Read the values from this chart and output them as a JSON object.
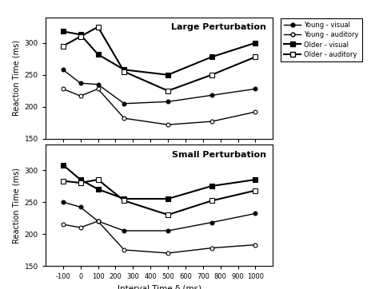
{
  "x": [
    -100,
    0,
    100,
    250,
    500,
    750,
    1000
  ],
  "large": {
    "young_visual": [
      258,
      237,
      235,
      205,
      208,
      218,
      228
    ],
    "young_auditory": [
      228,
      217,
      228,
      182,
      172,
      177,
      192
    ],
    "older_visual": [
      318,
      313,
      282,
      258,
      250,
      278,
      300
    ],
    "older_auditory": [
      295,
      310,
      325,
      255,
      225,
      250,
      278
    ]
  },
  "small": {
    "young_visual": [
      250,
      242,
      220,
      205,
      205,
      218,
      232
    ],
    "young_auditory": [
      215,
      210,
      220,
      175,
      170,
      178,
      183
    ],
    "older_visual": [
      308,
      285,
      270,
      255,
      255,
      275,
      285
    ],
    "older_auditory": [
      283,
      280,
      285,
      252,
      230,
      252,
      268
    ]
  },
  "xlim": [
    -200,
    1100
  ],
  "ylim": [
    150,
    340
  ],
  "xtick_pos": [
    -100,
    0,
    100,
    200,
    300,
    400,
    500,
    600,
    700,
    800,
    900,
    1000
  ],
  "xtick_labels": [
    "-100",
    "0",
    "100",
    "200",
    "300",
    "400",
    "500",
    "600",
    "700",
    "800",
    "900",
    "1000"
  ],
  "ytick_pos": [
    150,
    200,
    250,
    300
  ],
  "ytick_labels": [
    "150",
    "200",
    "250",
    "300"
  ],
  "ylabel": "Reaction Time (ms)",
  "xlabel": "Interval Time δ (ms)",
  "title_large": "Large Perturbation",
  "title_small": "Small Perturbation",
  "legend_labels": [
    "Young - visual",
    "Young - auditory",
    "Older - visual",
    "Older - auditory"
  ]
}
